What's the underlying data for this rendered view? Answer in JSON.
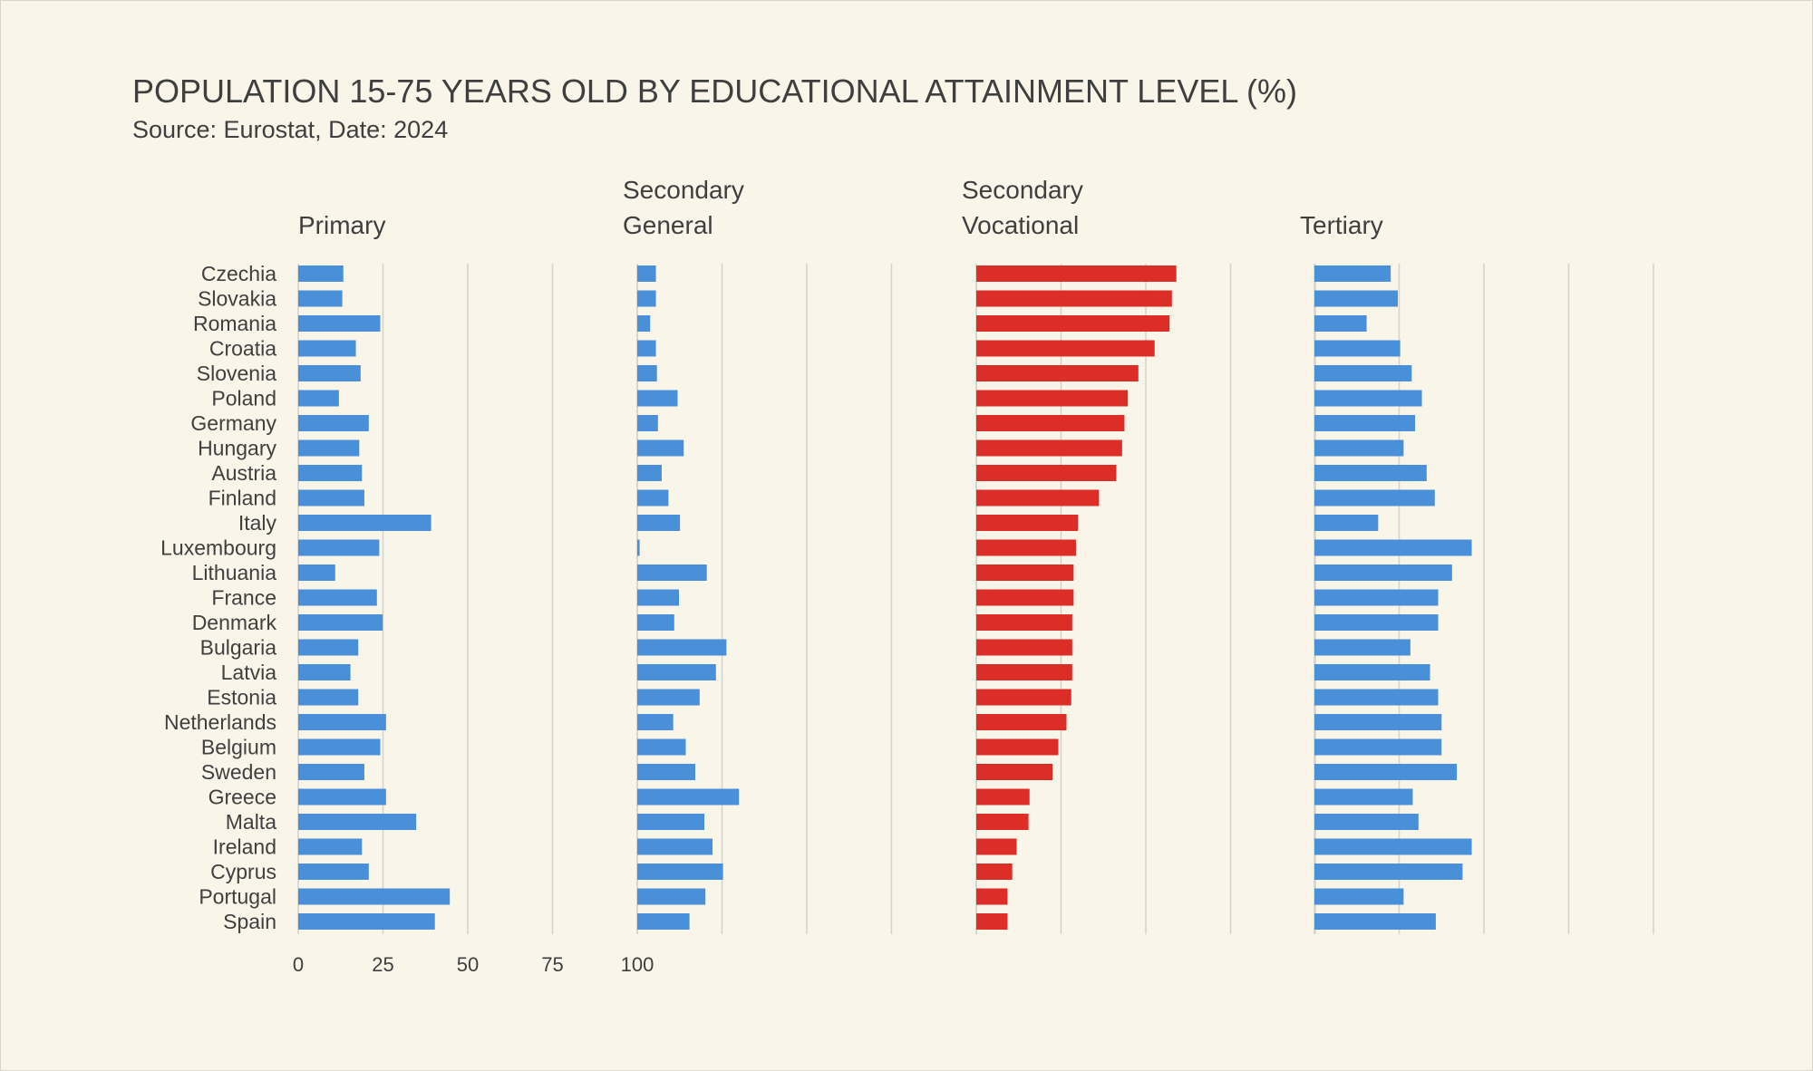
{
  "title": "POPULATION 15-75 YEARS OLD  BY EDUCATIONAL ATTAINMENT LEVEL (%)",
  "subtitle": "Source: Eurostat, Date: 2024",
  "chart_data": {
    "type": "bar",
    "orientation": "horizontal",
    "xlim": [
      0,
      100
    ],
    "x_ticks": [
      "0",
      "25",
      "50",
      "75",
      "100"
    ],
    "grid": true,
    "categories": [
      "Czechia",
      "Slovakia",
      "Romania",
      "Croatia",
      "Slovenia",
      "Poland",
      "Germany",
      "Hungary",
      "Austria",
      "Finland",
      "Italy",
      "Luxembourg",
      "Lithuania",
      "France",
      "Denmark",
      "Bulgaria",
      "Latvia",
      "Estonia",
      "Netherlands",
      "Belgium",
      "Sweden",
      "Greece",
      "Malta",
      "Ireland",
      "Cyprus",
      "Portugal",
      "Spain"
    ],
    "series": [
      {
        "name": [
          "Primary"
        ],
        "color": "#4a90d9",
        "values": [
          13.3,
          13,
          24.2,
          17,
          18.4,
          12,
          20.8,
          18,
          18.8,
          19.5,
          39.2,
          23.9,
          10.9,
          23.2,
          24.9,
          17.7,
          15.4,
          17.7,
          25.9,
          24.2,
          19.5,
          25.9,
          34.8,
          18.8,
          20.8,
          44.7,
          40.3
        ]
      },
      {
        "name": [
          "Secondary",
          "General"
        ],
        "color": "#4a90d9",
        "values": [
          5.5,
          5.5,
          3.8,
          5.5,
          5.8,
          11.9,
          6.1,
          13.7,
          7.2,
          9.2,
          12.6,
          0.7,
          20.5,
          12.3,
          10.9,
          26.3,
          23.2,
          18.4,
          10.6,
          14.3,
          17.1,
          30,
          19.8,
          22.2,
          25.3,
          20.1,
          15.4
        ]
      },
      {
        "name": [
          "Secondary",
          "Vocational"
        ],
        "color": "#dc2d27",
        "values": [
          59,
          57.7,
          57,
          52.6,
          47.8,
          44.7,
          43.7,
          43,
          41.3,
          36.2,
          30,
          29.4,
          28.7,
          28.7,
          28.3,
          28.3,
          28.3,
          28,
          26.6,
          24.2,
          22.5,
          15.7,
          15.4,
          11.9,
          10.6,
          9.2,
          9.2
        ]
      },
      {
        "name": [
          "Tertiary"
        ],
        "color": "#4a90d9",
        "values": [
          22.5,
          24.6,
          15.4,
          25.3,
          28.7,
          31.7,
          29.7,
          26.3,
          33.1,
          35.5,
          18.8,
          46.4,
          40.6,
          36.5,
          36.5,
          28.3,
          34.1,
          36.5,
          37.5,
          37.5,
          42,
          29,
          30.7,
          46.4,
          43.7,
          26.3,
          35.8
        ]
      }
    ]
  }
}
